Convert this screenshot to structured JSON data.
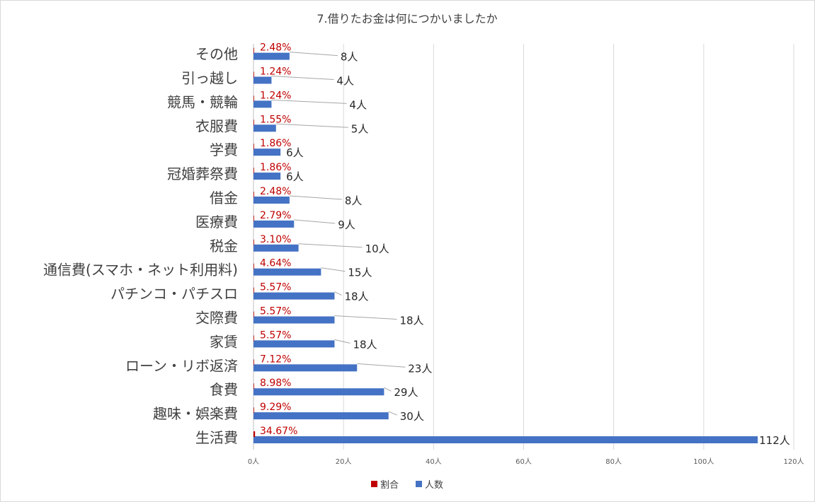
{
  "chart_data": {
    "type": "bar",
    "orientation": "horizontal",
    "title": "7.借りたお金は何につかいましたか",
    "categories": [
      "生活費",
      "趣味・娯楽費",
      "食費",
      "ローン・リボ返済",
      "家賃",
      "交際費",
      "パチンコ・パチスロ",
      "通信費(スマホ・ネット利用料)",
      "税金",
      "医療費",
      "借金",
      "冠婚葬祭費",
      "学費",
      "衣服費",
      "競馬・競輪",
      "引っ越し",
      "その他"
    ],
    "series": [
      {
        "name": "割合",
        "color": "#c00000",
        "values": [
          0.3467,
          0.0929,
          0.0898,
          0.0712,
          0.0557,
          0.0557,
          0.0557,
          0.0464,
          0.031,
          0.0279,
          0.0248,
          0.0186,
          0.0186,
          0.0155,
          0.0124,
          0.0124,
          0.0248
        ],
        "labels": [
          "34.67%",
          "9.29%",
          "8.98%",
          "7.12%",
          "5.57%",
          "5.57%",
          "5.57%",
          "4.64%",
          "3.10%",
          "2.79%",
          "2.48%",
          "1.86%",
          "1.86%",
          "1.55%",
          "1.24%",
          "1.24%",
          "2.48%"
        ]
      },
      {
        "name": "人数",
        "color": "#4472c4",
        "values": [
          112,
          30,
          29,
          23,
          18,
          18,
          18,
          15,
          10,
          9,
          8,
          6,
          6,
          5,
          4,
          4,
          8
        ],
        "labels": [
          "112人",
          "30人",
          "29人",
          "23人",
          "18人",
          "18人",
          "18人",
          "15人",
          "10人",
          "9人",
          "8人",
          "6人",
          "6人",
          "5人",
          "4人",
          "4人",
          "8人"
        ]
      }
    ],
    "xlim": [
      0,
      120
    ],
    "xticks": [
      0,
      20,
      40,
      60,
      80,
      100,
      120
    ],
    "xtick_labels": [
      "0人",
      "20人",
      "40人",
      "60人",
      "80人",
      "100人",
      "120人"
    ],
    "grid": true,
    "legend_position": "bottom"
  }
}
